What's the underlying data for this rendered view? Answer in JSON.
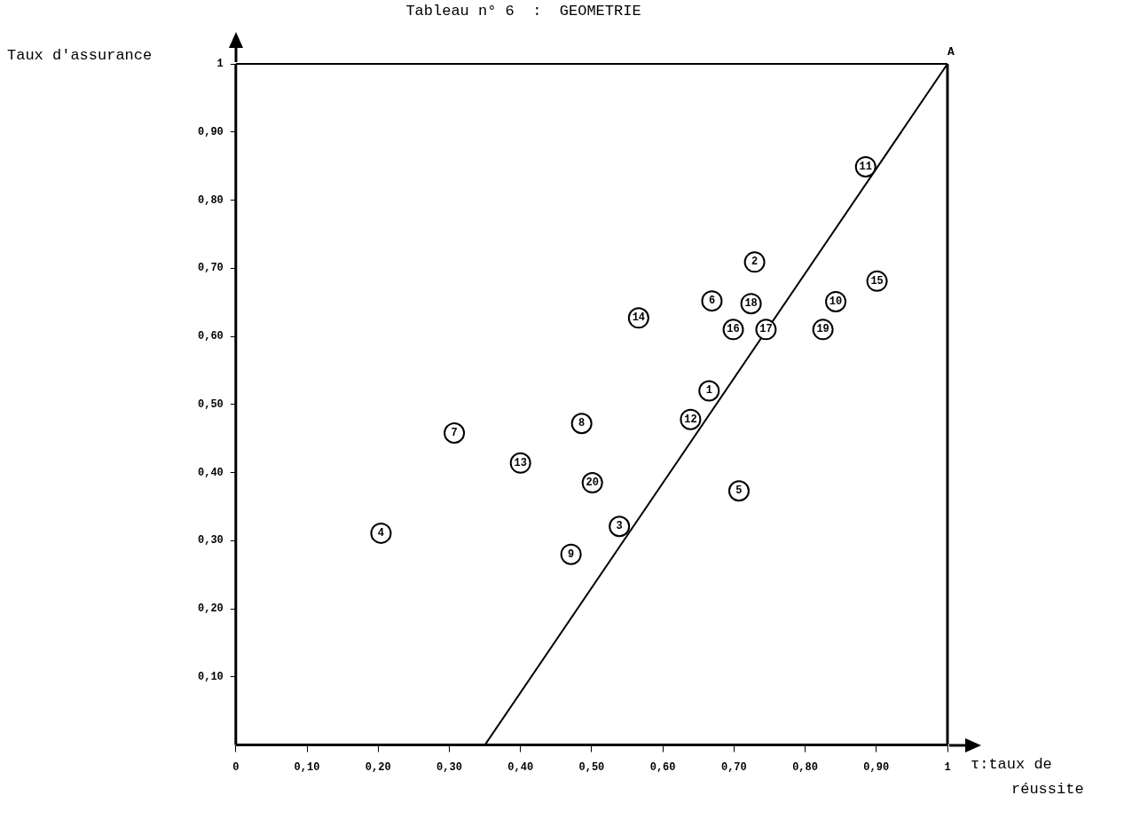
{
  "chart_data": {
    "type": "scatter",
    "title": "Tableau n° 6  :  GEOMETRIE",
    "xlabel": "τ:taux de réussite",
    "ylabel": "Taux d'assurance",
    "xlim": [
      0,
      1
    ],
    "ylim": [
      0,
      1
    ],
    "xticks": [
      {
        "value": 0,
        "label": "0"
      },
      {
        "value": 0.1,
        "label": "0,10"
      },
      {
        "value": 0.2,
        "label": "0,20"
      },
      {
        "value": 0.3,
        "label": "0,30"
      },
      {
        "value": 0.4,
        "label": "0,40"
      },
      {
        "value": 0.5,
        "label": "0,50"
      },
      {
        "value": 0.6,
        "label": "0,60"
      },
      {
        "value": 0.7,
        "label": "0,70"
      },
      {
        "value": 0.8,
        "label": "0,80"
      },
      {
        "value": 0.9,
        "label": "0,90"
      },
      {
        "value": 1,
        "label": "1"
      }
    ],
    "yticks": [
      {
        "value": 0.1,
        "label": "0,10"
      },
      {
        "value": 0.2,
        "label": "0,20"
      },
      {
        "value": 0.3,
        "label": "0,30"
      },
      {
        "value": 0.4,
        "label": "0,40"
      },
      {
        "value": 0.5,
        "label": "0,50"
      },
      {
        "value": 0.6,
        "label": "0,60"
      },
      {
        "value": 0.7,
        "label": "0,70"
      },
      {
        "value": 0.8,
        "label": "0,80"
      },
      {
        "value": 0.9,
        "label": "0,90"
      },
      {
        "value": 1,
        "label": "1"
      }
    ],
    "grid": false,
    "legend": false,
    "marker": "circle",
    "annotations": [
      {
        "text": "A",
        "x": 1,
        "y": 1
      },
      {
        "text": "1",
        "x": 0.665,
        "y": 0.52
      },
      {
        "text": "2",
        "x": 0.729,
        "y": 0.709
      },
      {
        "text": "3",
        "x": 0.539,
        "y": 0.321
      },
      {
        "text": "4",
        "x": 0.204,
        "y": 0.311
      },
      {
        "text": "5",
        "x": 0.707,
        "y": 0.373
      },
      {
        "text": "6",
        "x": 0.669,
        "y": 0.652
      },
      {
        "text": "7",
        "x": 0.307,
        "y": 0.458
      },
      {
        "text": "8",
        "x": 0.486,
        "y": 0.472
      },
      {
        "text": "9",
        "x": 0.471,
        "y": 0.28
      },
      {
        "text": "10",
        "x": 0.843,
        "y": 0.651
      },
      {
        "text": "11",
        "x": 0.885,
        "y": 0.849
      },
      {
        "text": "12",
        "x": 0.639,
        "y": 0.478
      },
      {
        "text": "13",
        "x": 0.4,
        "y": 0.414
      },
      {
        "text": "14",
        "x": 0.566,
        "y": 0.627
      },
      {
        "text": "15",
        "x": 0.901,
        "y": 0.681
      },
      {
        "text": "16",
        "x": 0.699,
        "y": 0.61
      },
      {
        "text": "17",
        "x": 0.745,
        "y": 0.61
      },
      {
        "text": "18",
        "x": 0.724,
        "y": 0.648
      },
      {
        "text": "19",
        "x": 0.825,
        "y": 0.61
      },
      {
        "text": "20",
        "x": 0.501,
        "y": 0.385
      }
    ],
    "series": [
      {
        "type": "scatter",
        "color": "#000000",
        "x": [
          0.665,
          0.729,
          0.539,
          0.204,
          0.707,
          0.669,
          0.307,
          0.486,
          0.471,
          0.843,
          0.885,
          0.639,
          0.4,
          0.566,
          0.901,
          0.699,
          0.745,
          0.724,
          0.825,
          0.501
        ],
        "values": [
          0.52,
          0.709,
          0.321,
          0.311,
          0.373,
          0.652,
          0.458,
          0.472,
          0.28,
          0.651,
          0.849,
          0.478,
          0.414,
          0.627,
          0.681,
          0.61,
          0.61,
          0.648,
          0.61,
          0.385
        ]
      },
      {
        "type": "line",
        "color": "#000000",
        "x": [
          0.35,
          1
        ],
        "values": [
          0,
          1
        ],
        "marker": "none",
        "line_style": "solid"
      }
    ]
  }
}
